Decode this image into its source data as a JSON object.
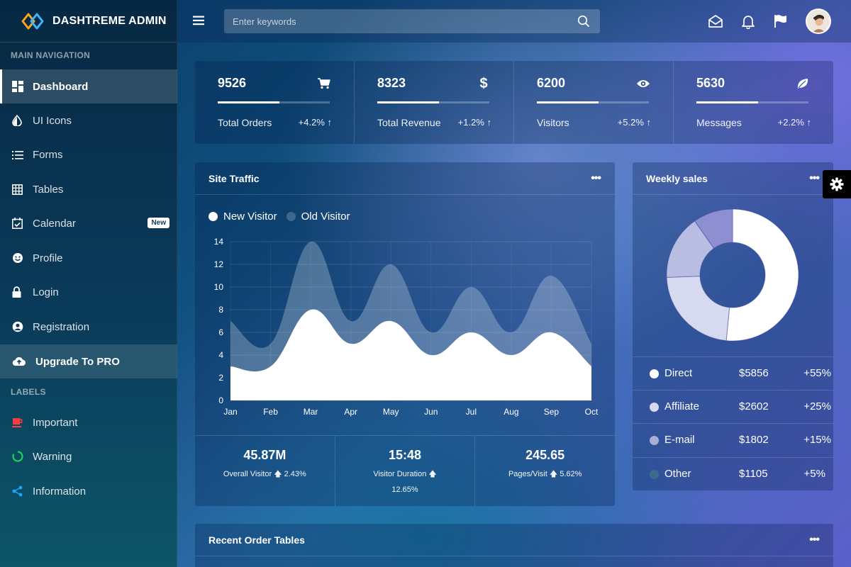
{
  "brand": {
    "title": "DASHTREME ADMIN"
  },
  "sidebar": {
    "main_header": "MAIN NAVIGATION",
    "labels_header": "LABELS",
    "items": [
      {
        "label": "Dashboard",
        "icon": "dashboard-icon"
      },
      {
        "label": "UI Icons",
        "icon": "tint-icon"
      },
      {
        "label": "Forms",
        "icon": "list-icon"
      },
      {
        "label": "Tables",
        "icon": "grid-icon"
      },
      {
        "label": "Calendar",
        "icon": "calendar-icon",
        "badge": "New"
      },
      {
        "label": "Profile",
        "icon": "smile-icon"
      },
      {
        "label": "Login",
        "icon": "lock-icon"
      },
      {
        "label": "Registration",
        "icon": "user-circle-icon"
      },
      {
        "label": "Upgrade To PRO",
        "icon": "cloud-upload-icon"
      }
    ],
    "labels": [
      {
        "label": "Important",
        "icon": "coffee-icon",
        "color": "#ff3b3b"
      },
      {
        "label": "Warning",
        "icon": "circle-notch-icon",
        "color": "#19d35a"
      },
      {
        "label": "Information",
        "icon": "share-icon",
        "color": "#14a8ff"
      }
    ]
  },
  "search": {
    "placeholder": "Enter keywords"
  },
  "stats": [
    {
      "value": "9526",
      "label": "Total Orders",
      "change": "+4.2% ↑",
      "icon": "cart-icon",
      "progress": 0.55
    },
    {
      "value": "8323",
      "label": "Total Revenue",
      "change": "+1.2% ↑",
      "icon": "dollar-icon",
      "progress": 0.55
    },
    {
      "value": "6200",
      "label": "Visitors",
      "change": "+5.2% ↑",
      "icon": "eye-icon",
      "progress": 0.55
    },
    {
      "value": "5630",
      "label": "Messages",
      "change": "+2.2% ↑",
      "icon": "leaf-icon",
      "progress": 0.55
    }
  ],
  "traffic": {
    "title": "Site Traffic",
    "dots": "•••",
    "footer": [
      {
        "value": "45.87M",
        "label": "Overall Visitor",
        "change": "2.43%"
      },
      {
        "value": "15:48",
        "label": "Visitor Duration",
        "change": "12.65%"
      },
      {
        "value": "245.65",
        "label": "Pages/Visit",
        "change": "5.62%"
      }
    ]
  },
  "weekly": {
    "title": "Weekly sales",
    "dots": "•••",
    "rows": [
      {
        "name": "Direct",
        "amount": "$5856",
        "pct": "+55%",
        "color": "#ffffff"
      },
      {
        "name": "Affiliate",
        "amount": "$2602",
        "pct": "+25%",
        "color": "#d6d9ef"
      },
      {
        "name": "E-mail",
        "amount": "$1802",
        "pct": "+15%",
        "color": "#a9aed6"
      },
      {
        "name": "Other",
        "amount": "$1105",
        "pct": "+5%",
        "color": "#3b6a8a"
      }
    ]
  },
  "orders": {
    "title": "Recent Order Tables",
    "dots": "•••"
  },
  "chart_data": [
    {
      "type": "area",
      "title": "Site Traffic",
      "categories": [
        "Jan",
        "Feb",
        "Mar",
        "Apr",
        "May",
        "Jun",
        "Jul",
        "Aug",
        "Sep",
        "Oct"
      ],
      "ylim": [
        0,
        14
      ],
      "yticks": [
        "0",
        "2",
        "4",
        "6",
        "8",
        "10",
        "12",
        "14"
      ],
      "grid": true,
      "legend": "top-left",
      "series": [
        {
          "name": "New Visitor",
          "values": [
            3,
            3,
            8,
            5,
            7,
            4,
            6,
            4,
            6,
            3
          ],
          "color": "#ffffff"
        },
        {
          "name": "Old Visitor",
          "values": [
            7,
            5,
            14,
            7,
            12,
            6,
            10,
            6,
            11,
            5
          ],
          "color": "rgba(255,255,255,0.25)"
        }
      ]
    },
    {
      "type": "pie",
      "title": "Weekly sales",
      "categories": [
        "Direct",
        "Affiliate",
        "E-mail",
        "Other"
      ],
      "values": [
        5856,
        2602,
        1802,
        1105
      ],
      "colors": [
        "#ffffff",
        "#d6d9ef",
        "#b9bde2",
        "#8d8fd0"
      ]
    }
  ]
}
